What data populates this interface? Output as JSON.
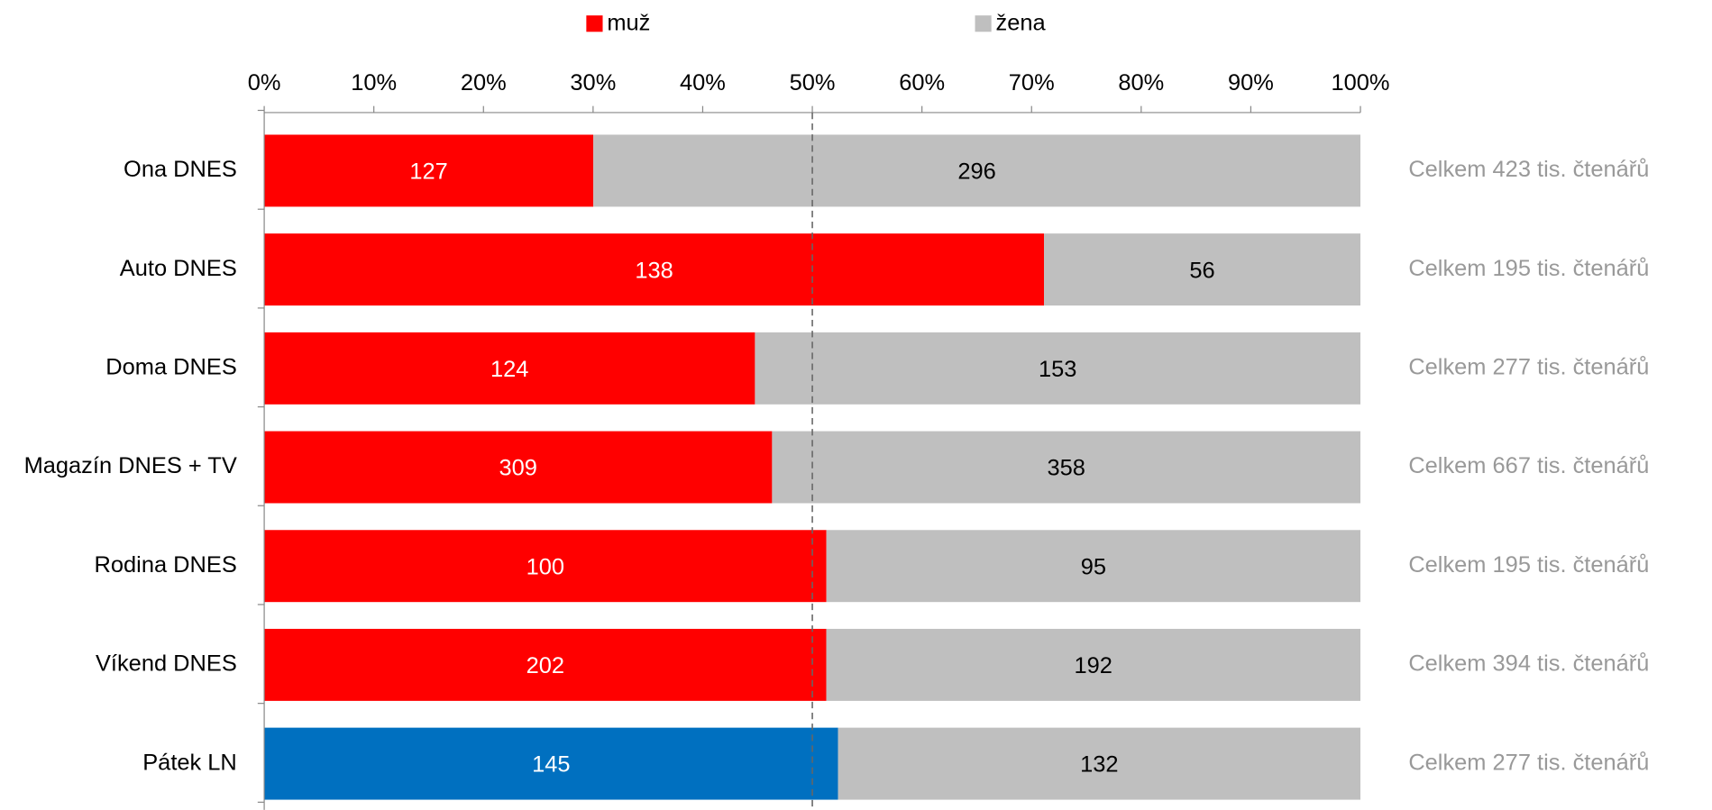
{
  "chart_data": {
    "type": "bar",
    "orientation": "horizontal",
    "stacked": "percent",
    "categories": [
      "Ona DNES",
      "Auto DNES",
      "Doma DNES",
      "Magazín DNES + TV",
      "Rodina DNES",
      "Víkend DNES",
      "Pátek LN"
    ],
    "series": [
      {
        "name": "muž",
        "color": "#ff0000",
        "colors": [
          "#ff0000",
          "#ff0000",
          "#ff0000",
          "#ff0000",
          "#ff0000",
          "#ff0000",
          "#0070c0"
        ],
        "label_color": "#ffffff",
        "values": [
          127,
          138,
          124,
          309,
          100,
          202,
          145
        ]
      },
      {
        "name": "žena",
        "color": "#bfbfbf",
        "label_color": "#000000",
        "values": [
          296,
          56,
          153,
          358,
          95,
          192,
          132
        ]
      }
    ],
    "annotations": [
      "Celkem 423 tis. čtenářů",
      "Celkem 195 tis. čtenářů",
      "Celkem 277 tis. čtenářů",
      "Celkem 667 tis. čtenářů",
      "Celkem 195 tis. čtenářů",
      "Celkem 394 tis. čtenářů",
      "Celkem 277 tis. čtenářů"
    ],
    "xlim": [
      0,
      100
    ],
    "xticks": [
      {
        "value": 0,
        "label": "0%"
      },
      {
        "value": 10,
        "label": "10%"
      },
      {
        "value": 20,
        "label": "20%"
      },
      {
        "value": 30,
        "label": "30%"
      },
      {
        "value": 40,
        "label": "40%"
      },
      {
        "value": 50,
        "label": "50%"
      },
      {
        "value": 60,
        "label": "60%"
      },
      {
        "value": 70,
        "label": "70%"
      },
      {
        "value": 80,
        "label": "80%"
      },
      {
        "value": 90,
        "label": "90%"
      },
      {
        "value": 100,
        "label": "100%"
      }
    ],
    "reference_line": 50,
    "legend": "top"
  }
}
